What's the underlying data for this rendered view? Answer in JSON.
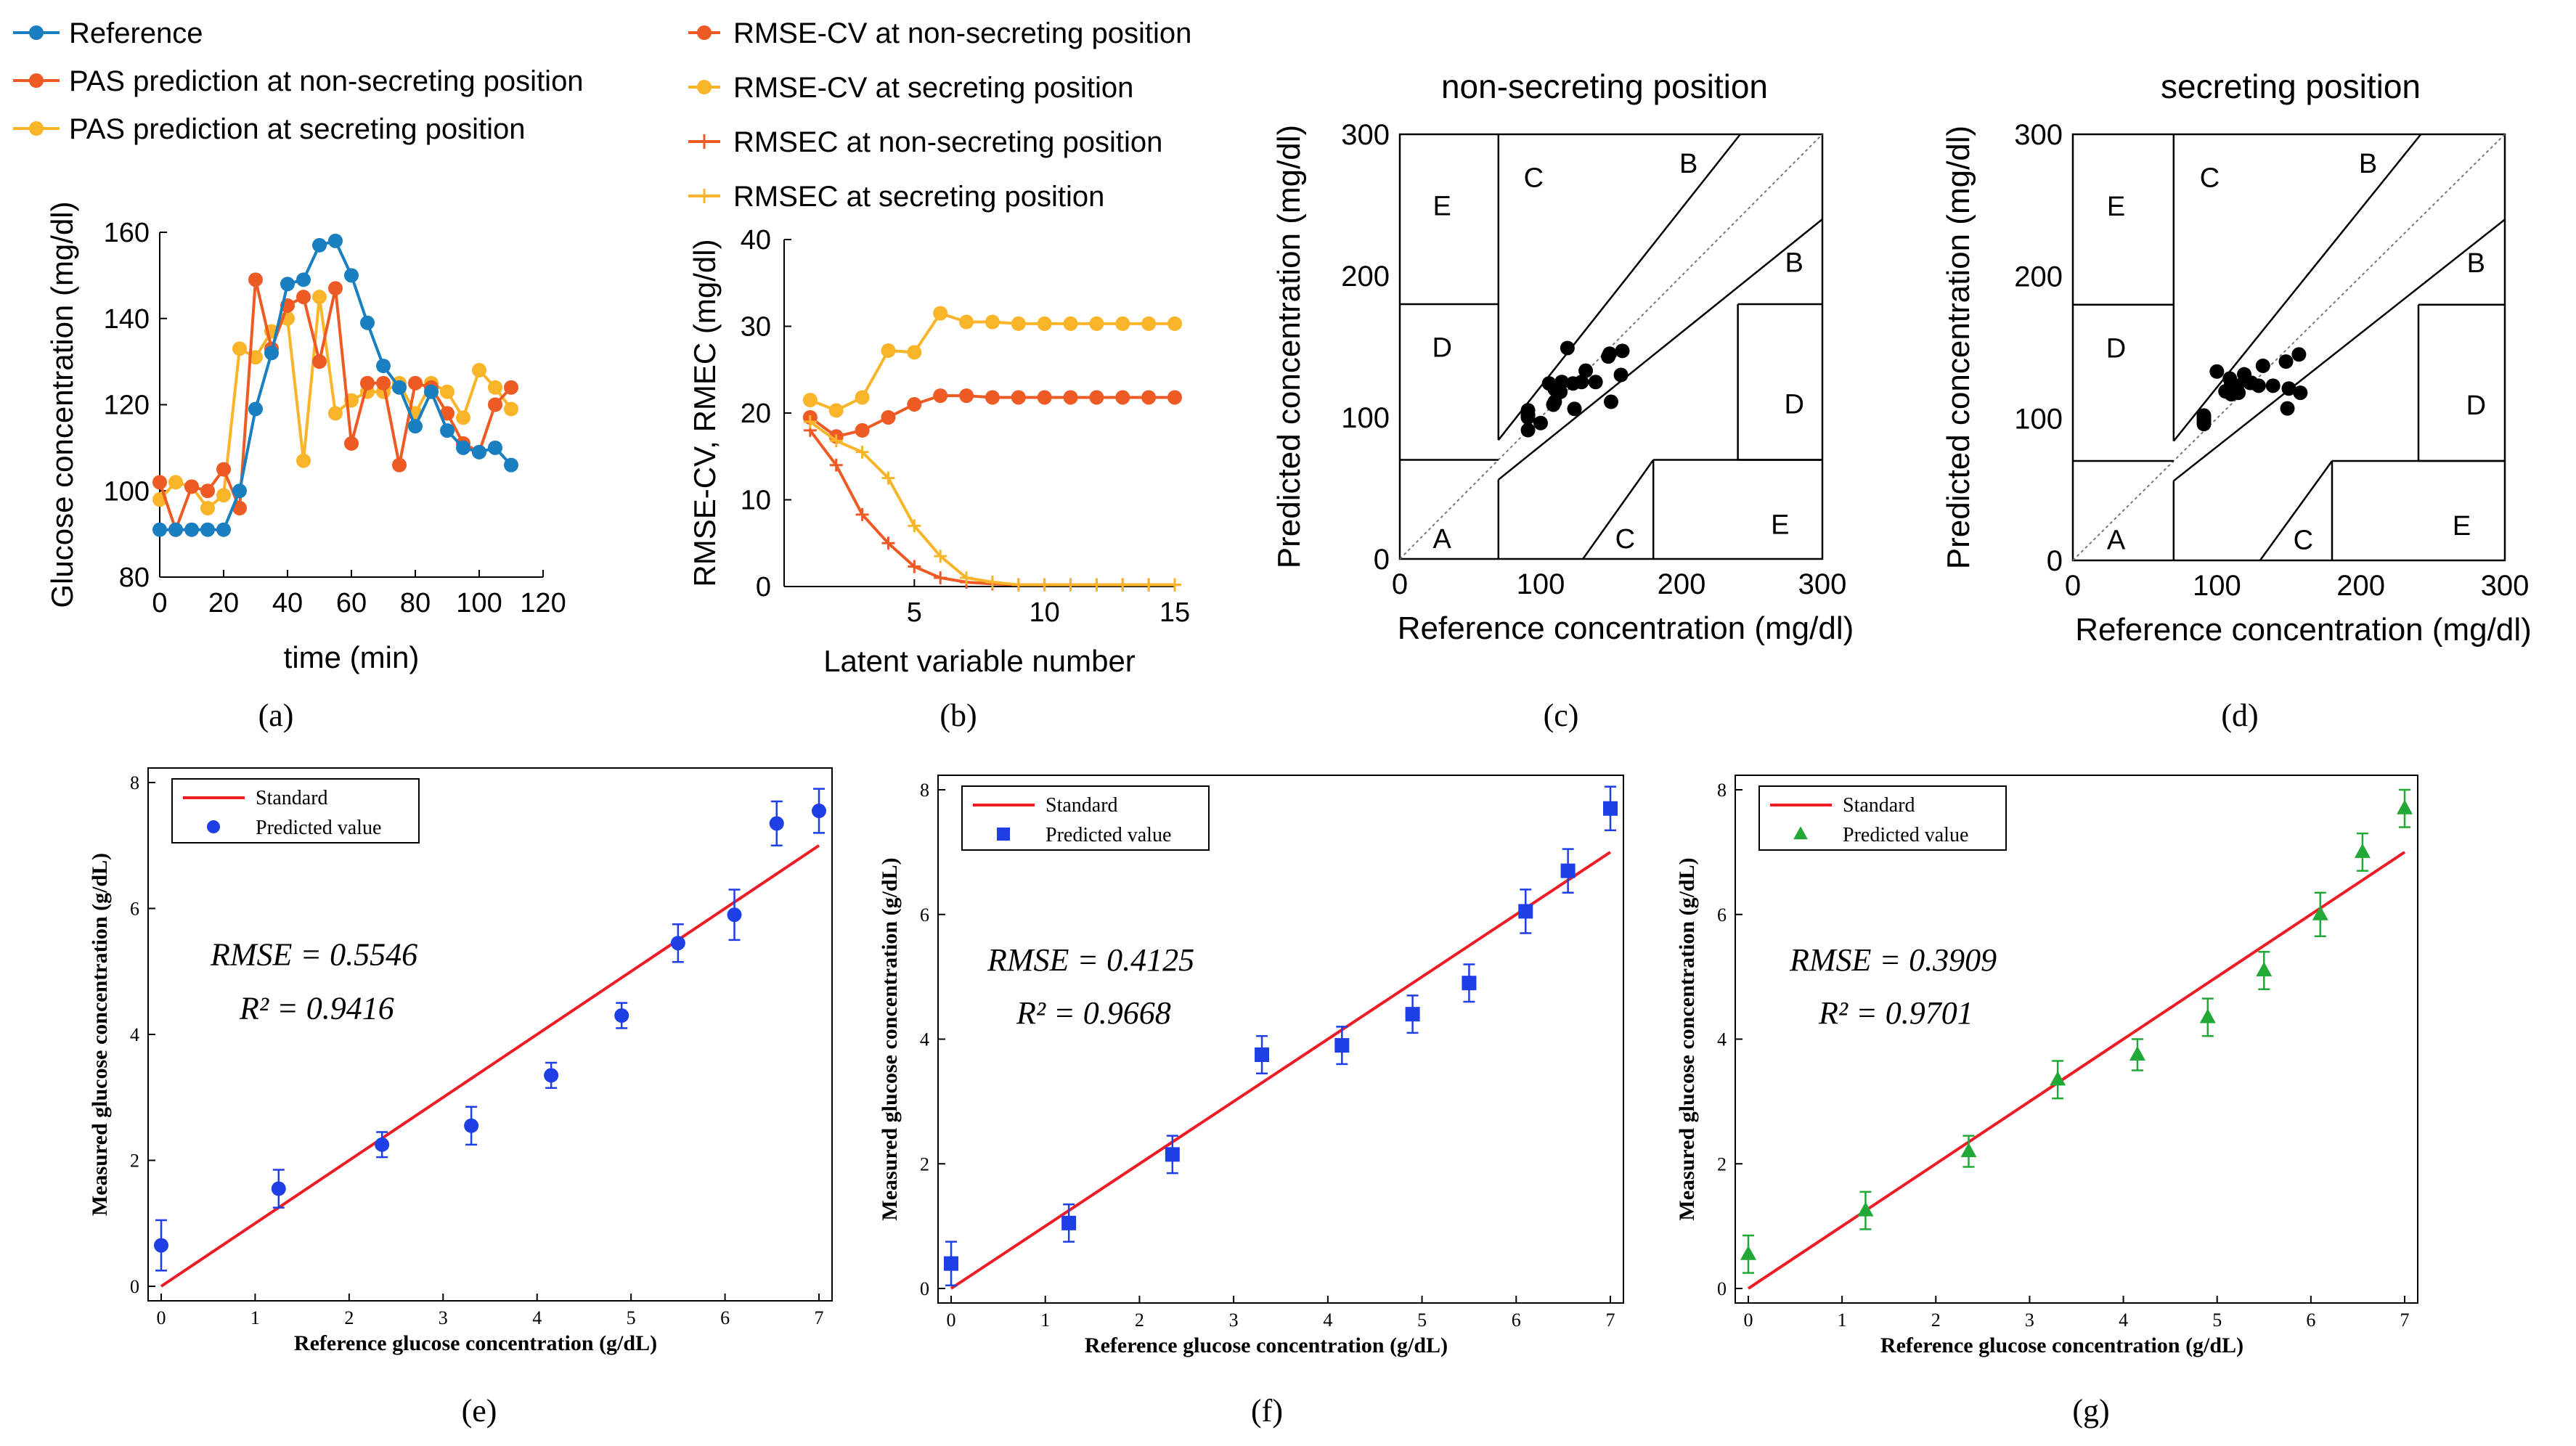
{
  "labels": [
    "(a)",
    "(b)",
    "(c)",
    "(d)",
    "(e)",
    "(f)",
    "(g)"
  ],
  "colors": {
    "blue": "#1a7fc1",
    "orange": "#ee5a24",
    "yellow": "#f9b42a",
    "red": "#ee1c25",
    "dotblue": "#1f3fe6",
    "green": "#22a836"
  },
  "chart_data": [
    {
      "id": "a",
      "type": "line",
      "xlabel": "time (min)",
      "ylabel": "Glucose concentration (mg/dl)",
      "xlim": [
        0,
        120
      ],
      "ylim": [
        80,
        160
      ],
      "xticks": [
        "0",
        "20",
        "40",
        "60",
        "80",
        "100",
        "120"
      ],
      "yticks": [
        "80",
        "100",
        "120",
        "140",
        "160"
      ],
      "legend": [
        "Reference",
        "PAS prediction at non-secreting position",
        "PAS prediction at secreting position"
      ],
      "series": [
        {
          "name": "Reference",
          "x": [
            0,
            5,
            10,
            15,
            20,
            25,
            30,
            35,
            40,
            45,
            50,
            55,
            60,
            65,
            70,
            75,
            80,
            85,
            90,
            95,
            100,
            105,
            110
          ],
          "y": [
            91,
            91,
            91,
            91,
            91,
            100,
            119,
            132,
            148,
            149,
            157,
            158,
            150,
            139,
            129,
            124,
            115,
            123,
            114,
            110,
            109,
            110,
            106
          ]
        },
        {
          "name": "PAS prediction at non-secreting position",
          "x": [
            0,
            5,
            10,
            15,
            20,
            25,
            30,
            35,
            40,
            45,
            50,
            55,
            60,
            65,
            70,
            75,
            80,
            85,
            90,
            95,
            100,
            105,
            110
          ],
          "y": [
            102,
            91,
            101,
            100,
            105,
            96,
            149,
            133,
            143,
            145,
            130,
            147,
            111,
            125,
            125,
            106,
            125,
            124,
            118,
            111,
            109,
            120,
            124
          ]
        },
        {
          "name": "PAS prediction at secreting position",
          "x": [
            0,
            5,
            10,
            15,
            20,
            25,
            30,
            35,
            40,
            45,
            50,
            55,
            60,
            65,
            70,
            75,
            80,
            85,
            90,
            95,
            100,
            105,
            110
          ],
          "y": [
            98,
            102,
            101,
            96,
            99,
            133,
            131,
            137,
            140,
            107,
            145,
            118,
            121,
            123,
            123,
            125,
            118,
            125,
            123,
            117,
            128,
            124,
            119
          ]
        }
      ]
    },
    {
      "id": "b",
      "type": "line",
      "xlabel": "Latent variable number",
      "ylabel": "RMSE-CV, RMEC (mg/dl)",
      "xlim": [
        0,
        15
      ],
      "ylim": [
        0,
        40
      ],
      "xticks": [
        "5",
        "10",
        "15"
      ],
      "yticks": [
        "0",
        "10",
        "20",
        "30",
        "40"
      ],
      "legend": [
        "RMSE-CV at non-secreting position",
        "RMSE-CV at secreting position",
        "RMSEC at non-secreting position",
        "RMSEC at secreting position"
      ],
      "series": [
        {
          "name": "RMSE-CV at non-secreting position",
          "x": [
            1,
            2,
            3,
            4,
            5,
            6,
            7,
            8,
            9,
            10,
            11,
            12,
            13,
            14,
            15
          ],
          "y": [
            19.5,
            17.3,
            18,
            19.5,
            21,
            22,
            22,
            21.8,
            21.8,
            21.8,
            21.8,
            21.8,
            21.8,
            21.8,
            21.8
          ]
        },
        {
          "name": "RMSE-CV at secreting position",
          "x": [
            1,
            2,
            3,
            4,
            5,
            6,
            7,
            8,
            9,
            10,
            11,
            12,
            13,
            14,
            15
          ],
          "y": [
            21.5,
            20.3,
            21.8,
            27.2,
            27,
            31.5,
            30.5,
            30.5,
            30.3,
            30.3,
            30.3,
            30.3,
            30.3,
            30.3,
            30.3
          ]
        },
        {
          "name": "RMSEC at non-secreting position",
          "x": [
            1,
            2,
            3,
            4,
            5,
            6,
            7,
            8,
            9,
            10,
            11,
            12,
            13,
            14,
            15
          ],
          "y": [
            18,
            14,
            8.3,
            5,
            2.3,
            1,
            0.5,
            0.3,
            0.2,
            0.2,
            0.2,
            0.2,
            0.2,
            0.2,
            0.2
          ]
        },
        {
          "name": "RMSEC at secreting position",
          "x": [
            1,
            2,
            3,
            4,
            5,
            6,
            7,
            8,
            9,
            10,
            11,
            12,
            13,
            14,
            15
          ],
          "y": [
            19,
            16.8,
            15.5,
            12.5,
            7,
            3.5,
            1,
            0.5,
            0.2,
            0.2,
            0.2,
            0.2,
            0.2,
            0.2,
            0.2
          ]
        }
      ]
    },
    {
      "id": "c",
      "type": "scatter",
      "title": "non-secreting position",
      "xlabel": "Reference concentration (mg/dl)",
      "ylabel": "Predicted concentration (mg/dl)",
      "xlim": [
        0,
        300
      ],
      "ylim": [
        0,
        300
      ],
      "xticks": [
        "0",
        "100",
        "200",
        "300"
      ],
      "yticks": [
        "0",
        "100",
        "200",
        "300"
      ],
      "zones": [
        "A",
        "B",
        "B",
        "C",
        "C",
        "D",
        "D",
        "E",
        "E"
      ],
      "x": [
        91,
        91,
        91,
        91,
        91,
        100,
        119,
        132,
        148,
        149,
        157,
        158,
        150,
        139,
        129,
        124,
        115,
        123,
        114,
        110,
        109,
        110,
        106
      ],
      "y": [
        102,
        91,
        101,
        100,
        105,
        96,
        149,
        133,
        143,
        145,
        130,
        147,
        111,
        125,
        125,
        106,
        125,
        124,
        118,
        111,
        109,
        120,
        124
      ]
    },
    {
      "id": "d",
      "type": "scatter",
      "title": "secreting position",
      "xlabel": "Reference concentration (mg/dl)",
      "ylabel": "Predicted concentration (mg/dl)",
      "xlim": [
        0,
        300
      ],
      "ylim": [
        0,
        300
      ],
      "xticks": [
        "0",
        "100",
        "200",
        "300"
      ],
      "yticks": [
        "0",
        "100",
        "200",
        "300"
      ],
      "zones": [
        "A",
        "B",
        "B",
        "C",
        "C",
        "D",
        "D",
        "E",
        "E"
      ],
      "x": [
        91,
        91,
        91,
        91,
        91,
        100,
        119,
        132,
        148,
        149,
        157,
        158,
        150,
        139,
        129,
        124,
        115,
        123,
        114,
        110,
        109,
        110,
        106
      ],
      "y": [
        98,
        102,
        101,
        96,
        99,
        133,
        131,
        137,
        140,
        107,
        145,
        118,
        121,
        123,
        123,
        125,
        118,
        125,
        123,
        117,
        128,
        124,
        119
      ]
    },
    {
      "id": "e",
      "type": "scatter",
      "marker": "circle",
      "xlabel": "Reference glucose concentration (g/dL)",
      "ylabel": "Measured glucose concentration (g/dL)",
      "xlim": [
        0,
        7
      ],
      "ylim": [
        0,
        8
      ],
      "xticks": [
        "0",
        "1",
        "2",
        "3",
        "4",
        "5",
        "6",
        "7"
      ],
      "yticks": [
        "0",
        "2",
        "4",
        "6",
        "8"
      ],
      "legend": [
        "Standard",
        "Predicted value"
      ],
      "rmse_text": "RMSE = 0.5546",
      "r2_text": "R² = 0.9416",
      "x": [
        0,
        1.25,
        2.35,
        3.3,
        4.15,
        4.9,
        5.5,
        6.1,
        6.55,
        7.0
      ],
      "y": [
        0.65,
        1.55,
        2.25,
        2.55,
        3.35,
        4.3,
        5.45,
        5.9,
        7.35,
        7.55
      ],
      "err": [
        0.4,
        0.3,
        0.2,
        0.3,
        0.2,
        0.2,
        0.3,
        0.4,
        0.35,
        0.35
      ]
    },
    {
      "id": "f",
      "type": "scatter",
      "marker": "square",
      "xlabel": "Reference glucose concentration (g/dL)",
      "ylabel": "Measured glucose concentration (g/dL)",
      "xlim": [
        0,
        7
      ],
      "ylim": [
        0,
        8
      ],
      "xticks": [
        "0",
        "1",
        "2",
        "3",
        "4",
        "5",
        "6",
        "7"
      ],
      "yticks": [
        "0",
        "2",
        "4",
        "6",
        "8"
      ],
      "legend": [
        "Standard",
        "Predicted value"
      ],
      "rmse_text": "RMSE = 0.4125",
      "r2_text": "R² = 0.9668",
      "x": [
        0,
        1.25,
        2.35,
        3.3,
        4.15,
        4.9,
        5.5,
        6.1,
        6.55,
        7.0
      ],
      "y": [
        0.4,
        1.05,
        2.15,
        3.75,
        3.9,
        4.4,
        4.9,
        6.05,
        6.7,
        7.7
      ],
      "err": [
        0.35,
        0.3,
        0.3,
        0.3,
        0.3,
        0.3,
        0.3,
        0.35,
        0.35,
        0.35
      ]
    },
    {
      "id": "g",
      "type": "scatter",
      "marker": "triangle",
      "xlabel": "Reference glucose concentration (g/dL)",
      "ylabel": "Measured glucose concentration (g/dL)",
      "xlim": [
        0,
        7
      ],
      "ylim": [
        0,
        8
      ],
      "xticks": [
        "0",
        "1",
        "2",
        "3",
        "4",
        "5",
        "6",
        "7"
      ],
      "yticks": [
        "0",
        "2",
        "4",
        "6",
        "8"
      ],
      "legend": [
        "Standard",
        "Predicted value"
      ],
      "rmse_text": "RMSE = 0.3909",
      "r2_text": "R² = 0.9701",
      "x": [
        0,
        1.25,
        2.35,
        3.3,
        4.15,
        4.9,
        5.5,
        6.1,
        6.55,
        7.0
      ],
      "y": [
        0.55,
        1.25,
        2.2,
        3.35,
        3.75,
        4.35,
        5.1,
        6.0,
        7.0,
        7.7
      ],
      "err": [
        0.3,
        0.3,
        0.25,
        0.3,
        0.25,
        0.3,
        0.3,
        0.35,
        0.3,
        0.3
      ]
    }
  ]
}
